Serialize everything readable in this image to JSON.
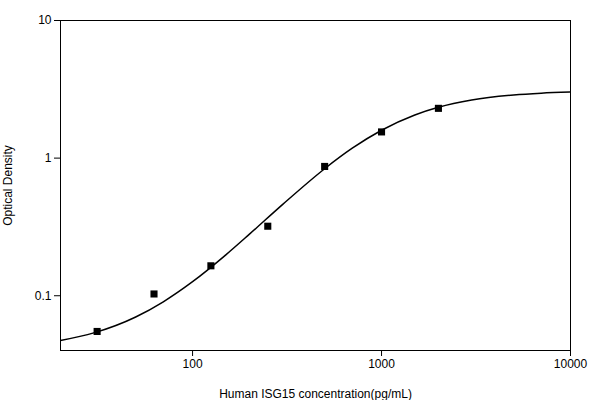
{
  "chart_data": {
    "type": "scatter",
    "xlabel": "Human ISG15 concentration(pg/mL)",
    "ylabel": "Optical Density",
    "log": true,
    "grid": false,
    "xlim": [
      20,
      10000
    ],
    "ylim": [
      0.04,
      10
    ],
    "xticks": [
      100,
      1000,
      10000
    ],
    "yticks": [
      0.1,
      1,
      10
    ],
    "series": [
      {
        "type": "line",
        "color": "black",
        "x": [
          20,
          30,
          50,
          70,
          100,
          150,
          200,
          300,
          500,
          700,
          1000,
          1500,
          2000,
          3000,
          5000,
          7000,
          10000
        ],
        "values": [
          0.0473,
          0.0537,
          0.0701,
          0.0904,
          0.1265,
          0.1982,
          0.2801,
          0.4612,
          0.8372,
          1.1798,
          1.5939,
          2.0571,
          2.339,
          2.6408,
          2.8734,
          2.9613,
          3.0186
        ]
      },
      {
        "type": "scatter",
        "color": "black",
        "marker": "square",
        "x": [
          31.25,
          62.5,
          125,
          250,
          500,
          1000,
          2000
        ],
        "values": [
          0.055,
          0.103,
          0.165,
          0.32,
          0.87,
          1.55,
          2.3
        ]
      }
    ]
  }
}
